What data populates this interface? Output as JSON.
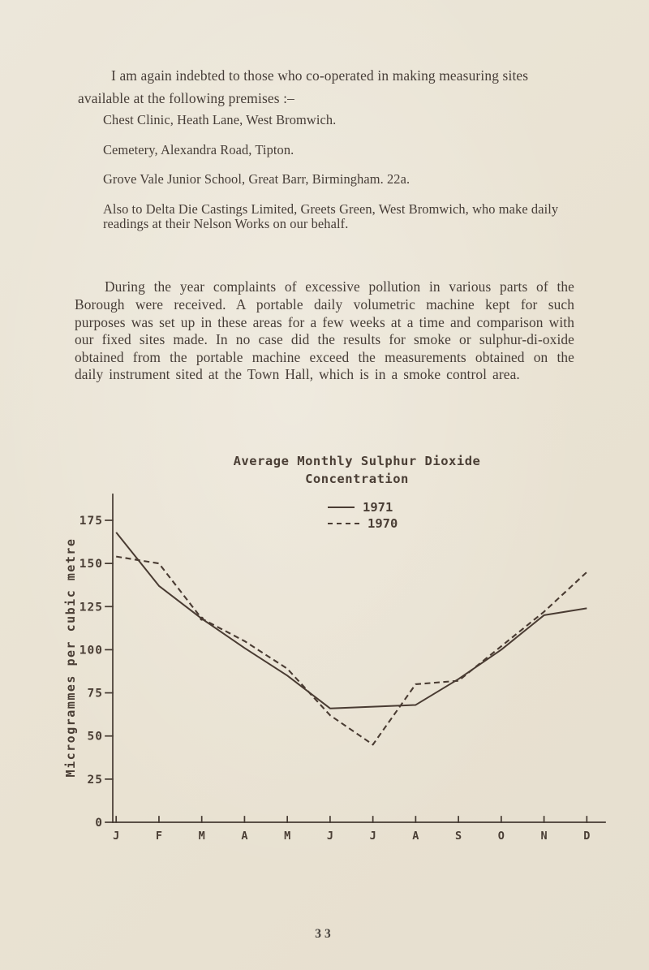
{
  "document": {
    "intro": "I am again indebted to those who co-operated in making measuring sites available at the following premises :–",
    "premises": [
      "Chest Clinic, Heath Lane, West Bromwich.",
      "Cemetery, Alexandra Road, Tipton.",
      "Grove Vale Junior School, Great Barr, Birmingham. 22a.",
      "Also to Delta Die Castings Limited, Greets Green, West Bromwich, who make daily readings at their Nelson Works on our behalf."
    ],
    "body": "During the year complaints of excessive pollution in various parts of the Borough were received. A portable daily volumetric machine kept for such purposes was set up in these areas for a few weeks at a time and comparison with our fixed sites made. In no case did the results for smoke or sulphur-di-oxide obtained from the portable machine exceed the measurements obtained on the daily instrument sited at the Town Hall, which is in a smoke control area.",
    "page_number": "33"
  },
  "colors": {
    "paper": "#ebe5d7",
    "ink": "#463d37",
    "chart_ink": "#493b32"
  },
  "chart_data": {
    "type": "line",
    "title": "Average Monthly Sulphur Dioxide",
    "subtitle": "Concentration",
    "ylabel": "Microgrammes per cubic metre",
    "xlabel": "",
    "x_categories": [
      "J",
      "F",
      "M",
      "A",
      "M",
      "J",
      "J",
      "A",
      "S",
      "O",
      "N",
      "D"
    ],
    "ylim": [
      0,
      175
    ],
    "ytick_step": 25,
    "grid": false,
    "legend_position": "top-center",
    "series": [
      {
        "name": "1971",
        "style": "solid",
        "values": [
          168,
          137,
          118,
          101,
          85,
          66,
          67,
          68,
          83,
          100,
          120,
          124
        ]
      },
      {
        "name": "1970",
        "style": "dashed",
        "values": [
          154,
          150,
          118,
          105,
          89,
          62,
          45,
          80,
          82,
          102,
          122,
          145
        ]
      }
    ]
  }
}
